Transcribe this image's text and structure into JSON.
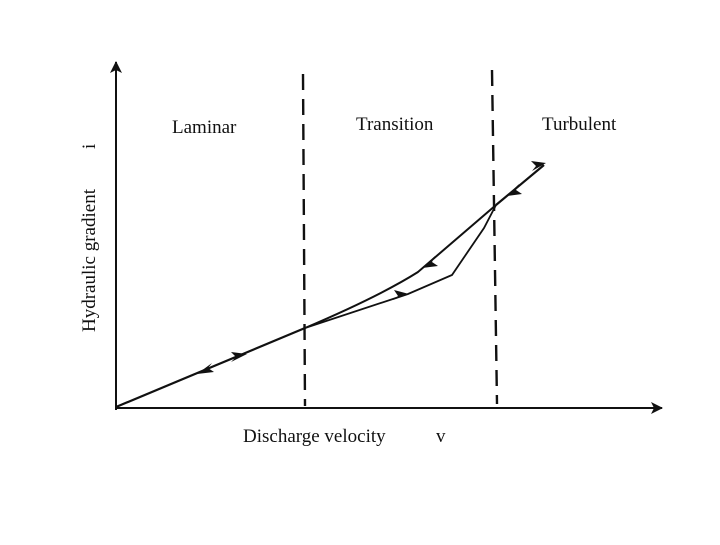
{
  "diagram": {
    "x_axis_label": "Discharge velocity",
    "x_axis_symbol": "v",
    "y_axis_label": "Hydraulic gradient",
    "y_axis_symbol": "i",
    "regions": [
      {
        "id": "laminar",
        "label": "Laminar"
      },
      {
        "id": "transition",
        "label": "Transition"
      },
      {
        "id": "turbulent",
        "label": "Turbulent"
      }
    ],
    "colors": {
      "line": "#111111",
      "background": "#ffffff"
    }
  }
}
